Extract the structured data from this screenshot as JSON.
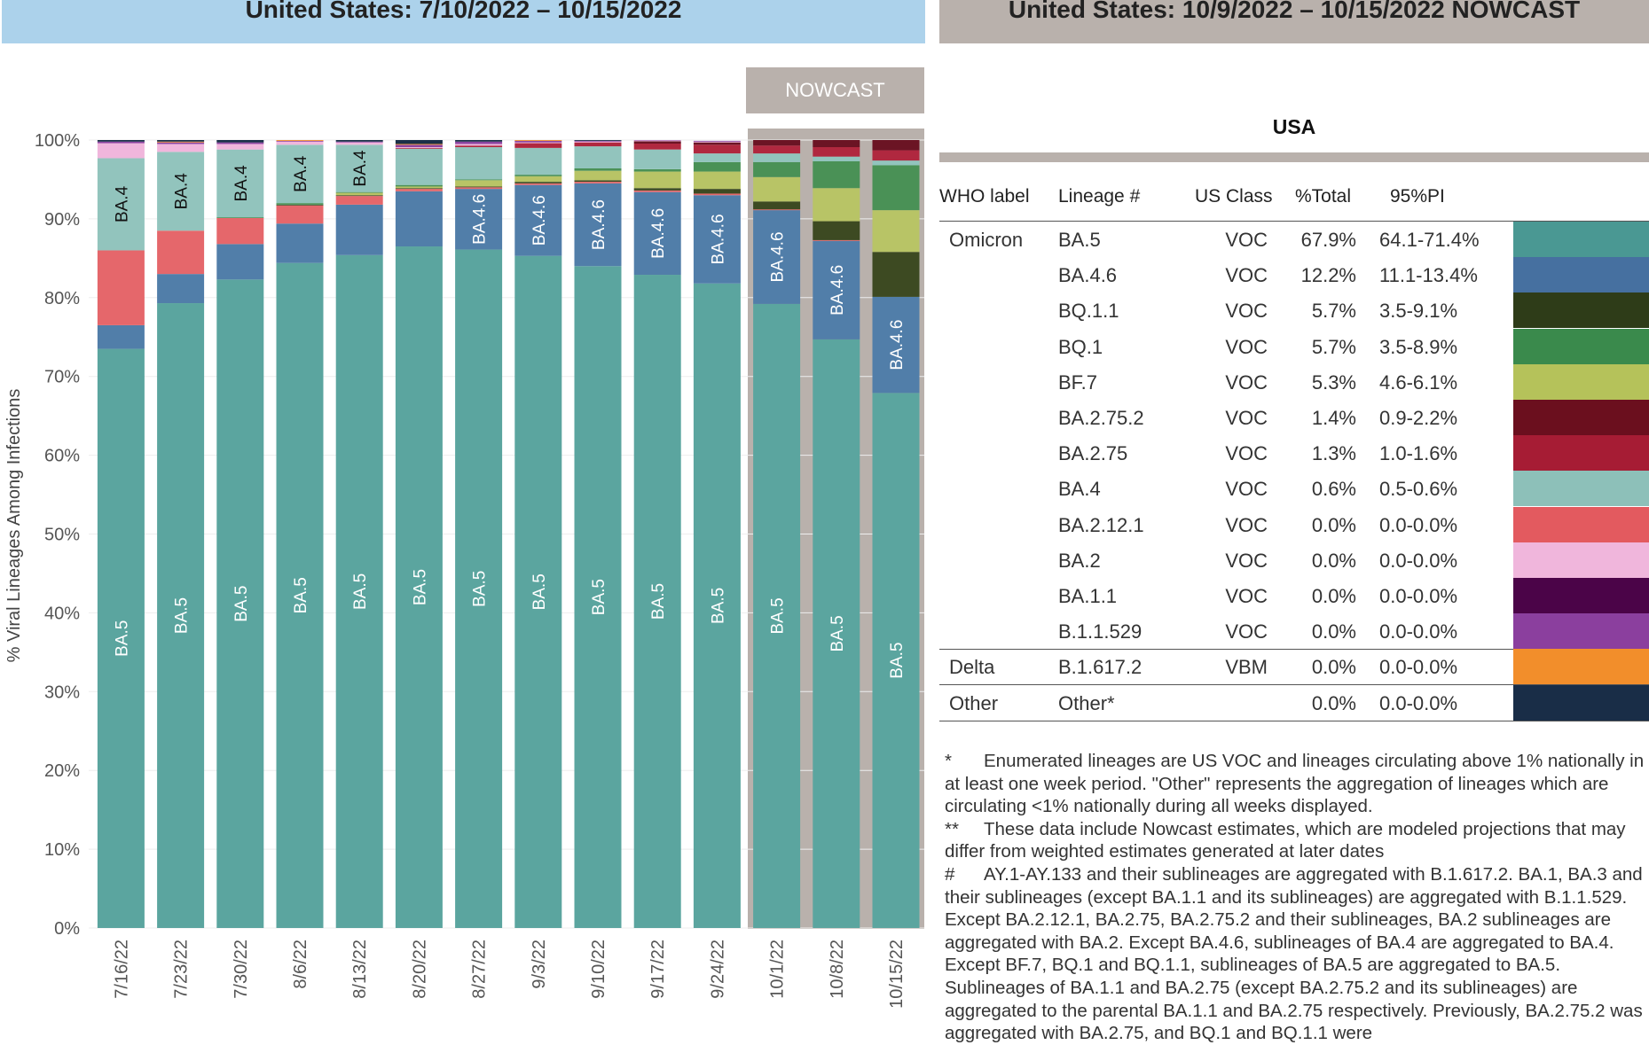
{
  "headers": {
    "left": "United States: 7/10/2022 – 10/15/2022",
    "right": "United States: 10/9/2022 – 10/15/2022 NOWCAST"
  },
  "nowcast_label": "NOWCAST",
  "chart_data": {
    "type": "bar",
    "stacked": true,
    "ylabel": "% Viral Lineages Among Infections",
    "ylim": [
      0,
      100
    ],
    "yticks": [
      "0%",
      "10%",
      "20%",
      "30%",
      "40%",
      "50%",
      "60%",
      "70%",
      "80%",
      "90%",
      "100%"
    ],
    "grid": true,
    "categories": [
      "7/16/22",
      "7/23/22",
      "7/30/22",
      "8/6/22",
      "8/13/22",
      "8/20/22",
      "8/27/22",
      "9/3/22",
      "9/10/22",
      "9/17/22",
      "9/24/22",
      "10/1/22",
      "10/8/22",
      "10/15/22"
    ],
    "nowcast_categories": [
      "10/1/22",
      "10/8/22",
      "10/15/22"
    ],
    "series": [
      {
        "name": "BA.5",
        "color": "#5ba59f",
        "values": [
          73.5,
          79.3,
          82.3,
          84.4,
          85.4,
          86.5,
          86.1,
          85.3,
          84.0,
          82.9,
          81.8,
          79.2,
          74.7,
          67.9
        ]
      },
      {
        "name": "BA.4.6",
        "color": "#517ea9",
        "values": [
          3.0,
          3.7,
          4.5,
          5.0,
          6.4,
          7.0,
          7.7,
          9.0,
          10.5,
          10.5,
          11.2,
          11.9,
          12.5,
          12.2
        ]
      },
      {
        "name": "BA.2.12.1",
        "color": "#e5676b",
        "values": [
          9.5,
          5.5,
          3.3,
          2.3,
          1.1,
          0.3,
          0.2,
          0.2,
          0.2,
          0.2,
          0.2,
          0.1,
          0.1,
          0.0
        ]
      },
      {
        "name": "BQ.1.1",
        "color": "#3d4a22",
        "values": [
          0,
          0,
          0,
          0.1,
          0.1,
          0.1,
          0.1,
          0.2,
          0.2,
          0.3,
          0.6,
          1.0,
          2.4,
          5.7
        ]
      },
      {
        "name": "BF.7",
        "color": "#b8c466",
        "values": [
          0,
          0,
          0,
          0,
          0.3,
          0.2,
          0.8,
          0.7,
          1.2,
          2.1,
          2.2,
          3.1,
          4.2,
          5.3
        ]
      },
      {
        "name": "BQ.1",
        "color": "#4a9156",
        "values": [
          0,
          0,
          0.1,
          0.2,
          0.1,
          0.2,
          0.1,
          0.2,
          0.3,
          0.3,
          1.2,
          1.9,
          3.4,
          5.7
        ]
      },
      {
        "name": "BA.4",
        "color": "#92c4bd",
        "values": [
          11.7,
          10.0,
          8.6,
          7.4,
          6.0,
          4.6,
          4.1,
          3.4,
          2.8,
          2.5,
          1.1,
          1.1,
          0.6,
          0.6
        ]
      },
      {
        "name": "BA.2.75",
        "color": "#b0283f",
        "values": [
          0,
          0,
          0,
          0,
          0,
          0.1,
          0.2,
          0.6,
          0.5,
          0.75,
          1.1,
          1.0,
          1.2,
          1.3
        ]
      },
      {
        "name": "BA.2.75.2",
        "color": "#6b1424",
        "values": [
          0,
          0,
          0,
          0,
          0,
          0,
          0,
          0,
          0,
          0.3,
          0.3,
          0.7,
          1.0,
          1.4
        ]
      },
      {
        "name": "BA.2",
        "color": "#f0b6dc",
        "values": [
          1.9,
          1.0,
          0.7,
          0.4,
          0.3,
          0.1,
          0.2,
          0.1,
          0.1,
          0.1,
          0.1,
          0,
          0,
          0
        ]
      },
      {
        "name": "BA.1.1",
        "color": "#4b0a4a",
        "values": [
          0,
          0,
          0,
          0,
          0,
          0,
          0,
          0,
          0,
          0,
          0,
          0,
          0,
          0
        ]
      },
      {
        "name": "B.1.1.529",
        "color": "#8c44a0",
        "values": [
          0.2,
          0.2,
          0.2,
          0.1,
          0.1,
          0.3,
          0.3,
          0.2,
          0.1,
          0.1,
          0.1,
          0,
          0,
          0
        ]
      },
      {
        "name": "B.1.617.2",
        "color": "#f28e2b",
        "values": [
          0,
          0.1,
          0,
          0.1,
          0,
          0.1,
          0,
          0.1,
          0,
          0,
          0,
          0,
          0,
          0
        ]
      },
      {
        "name": "Other",
        "color": "#1a2f48",
        "values": [
          0.2,
          0.2,
          0.3,
          0.2,
          0.2,
          0.5,
          0.2,
          0,
          0.1,
          0,
          0,
          0,
          0,
          0
        ]
      }
    ],
    "segment_labels": [
      [
        "BA.5",
        "BA.4"
      ],
      [
        "BA.5",
        "BA.4"
      ],
      [
        "BA.5",
        "BA.4"
      ],
      [
        "BA.5",
        "BA.4"
      ],
      [
        "BA.5",
        "BA.4"
      ],
      [
        "BA.5"
      ],
      [
        "BA.5",
        "BA.4.6"
      ],
      [
        "BA.5",
        "BA.4.6"
      ],
      [
        "BA.5",
        "BA.4.6"
      ],
      [
        "BA.5",
        "BA.4.6"
      ],
      [
        "BA.5",
        "BA.4.6"
      ],
      [
        "BA.5",
        "BA.4.6"
      ],
      [
        "BA.5",
        "BA.4.6"
      ],
      [
        "BA.5",
        "BA.4.6"
      ]
    ]
  },
  "table": {
    "title": "USA",
    "columns": [
      "WHO label",
      "Lineage #",
      "US Class",
      "%Total",
      "95%PI"
    ],
    "rows": [
      {
        "who": "Omicron",
        "lineage": "BA.5",
        "class": "VOC",
        "total": "67.9%",
        "pi": "64.1-71.4%",
        "color": "#4a9893"
      },
      {
        "who": "",
        "lineage": "BA.4.6",
        "class": "VOC",
        "total": "12.2%",
        "pi": "11.1-13.4%",
        "color": "#4670a0"
      },
      {
        "who": "",
        "lineage": "BQ.1.1",
        "class": "VOC",
        "total": "5.7%",
        "pi": "3.5-9.1%",
        "color": "#2e3c18"
      },
      {
        "who": "",
        "lineage": "BQ.1",
        "class": "VOC",
        "total": "5.7%",
        "pi": "3.5-8.9%",
        "color": "#3a8a4c"
      },
      {
        "who": "",
        "lineage": "BF.7",
        "class": "VOC",
        "total": "5.3%",
        "pi": "4.6-6.1%",
        "color": "#b5c25a"
      },
      {
        "who": "",
        "lineage": "BA.2.75.2",
        "class": "VOC",
        "total": "1.4%",
        "pi": "0.9-2.2%",
        "color": "#6b0f1e"
      },
      {
        "who": "",
        "lineage": "BA.2.75",
        "class": "VOC",
        "total": "1.3%",
        "pi": "1.0-1.6%",
        "color": "#a61c34"
      },
      {
        "who": "",
        "lineage": "BA.4",
        "class": "VOC",
        "total": "0.6%",
        "pi": "0.5-0.6%",
        "color": "#8dc0b9"
      },
      {
        "who": "",
        "lineage": "BA.2.12.1",
        "class": "VOC",
        "total": "0.0%",
        "pi": "0.0-0.0%",
        "color": "#e35a5f"
      },
      {
        "who": "",
        "lineage": "BA.2",
        "class": "VOC",
        "total": "0.0%",
        "pi": "0.0-0.0%",
        "color": "#f0b6dc"
      },
      {
        "who": "",
        "lineage": "BA.1.1",
        "class": "VOC",
        "total": "0.0%",
        "pi": "0.0-0.0%",
        "color": "#4b0448"
      },
      {
        "who": "",
        "lineage": "B.1.1.529",
        "class": "VOC",
        "total": "0.0%",
        "pi": "0.0-0.0%",
        "color": "#8b3f9e"
      },
      {
        "who": "Delta",
        "lineage": "B.1.617.2",
        "class": "VBM",
        "total": "0.0%",
        "pi": "0.0-0.0%",
        "color": "#f28e2b"
      },
      {
        "who": "Other",
        "lineage": "Other*",
        "class": "",
        "total": "0.0%",
        "pi": "0.0-0.0%",
        "color": "#192d47"
      }
    ]
  },
  "notes": [
    {
      "mark": "*",
      "text": "Enumerated lineages are US VOC and lineages circulating above 1% nationally in at least one week period. \"Other\" represents the aggregation of lineages which are circulating <1% nationally during all weeks displayed."
    },
    {
      "mark": "**",
      "text": "These data include Nowcast estimates, which are modeled projections that may differ from weighted estimates generated at later dates"
    },
    {
      "mark": "#",
      "text": "AY.1-AY.133 and their sublineages are aggregated with B.1.617.2. BA.1, BA.3 and their sublineages (except BA.1.1 and its sublineages) are aggregated with B.1.1.529. Except BA.2.12.1, BA.2.75, BA.2.75.2 and their sublineages, BA.2 sublineages are aggregated with BA.2. Except BA.4.6, sublineages of BA.4 are aggregated to BA.4. Except BF.7, BQ.1 and BQ.1.1, sublineages of BA.5 are aggregated to BA.5. Sublineages of BA.1.1 and BA.2.75 (except BA.2.75.2 and its sublineages) are aggregated to the parental BA.1.1 and BA.2.75 respectively. Previously, BA.2.75.2 was aggregated with BA.2.75, and BQ.1 and BQ.1.1 were"
    }
  ]
}
